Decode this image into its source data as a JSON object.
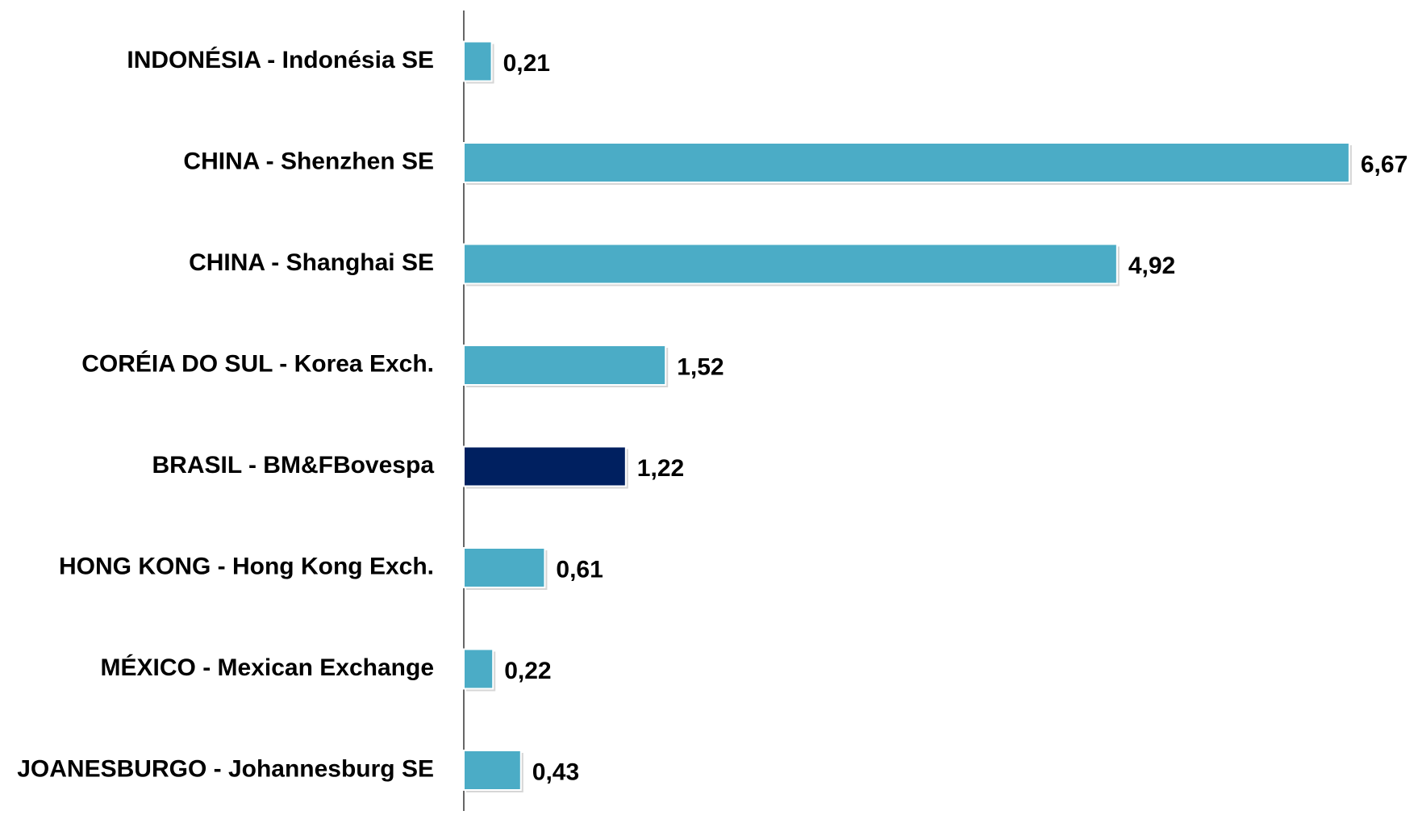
{
  "chart_data": {
    "type": "barh",
    "categories": [
      "INDONÉSIA - Indonésia SE",
      "CHINA - Shenzhen SE",
      "CHINA - Shanghai SE",
      "CORÉIA DO SUL - Korea Exch.",
      "BRASIL - BM&FBovespa",
      "HONG KONG - Hong Kong Exch.",
      "MÉXICO - Mexican Exchange",
      "JOANESBURGO - Johannesburg SE"
    ],
    "values": [
      0.21,
      6.67,
      4.92,
      1.52,
      1.22,
      0.61,
      0.22,
      0.43
    ],
    "value_labels": [
      "0,21",
      "6,67",
      "4,92",
      "1,52",
      "1,22",
      "0,61",
      "0,22",
      "0,43"
    ],
    "colors": [
      "#4bacc6",
      "#4bacc6",
      "#4bacc6",
      "#4bacc6",
      "#002060",
      "#4bacc6",
      "#4bacc6",
      "#4bacc6"
    ]
  }
}
